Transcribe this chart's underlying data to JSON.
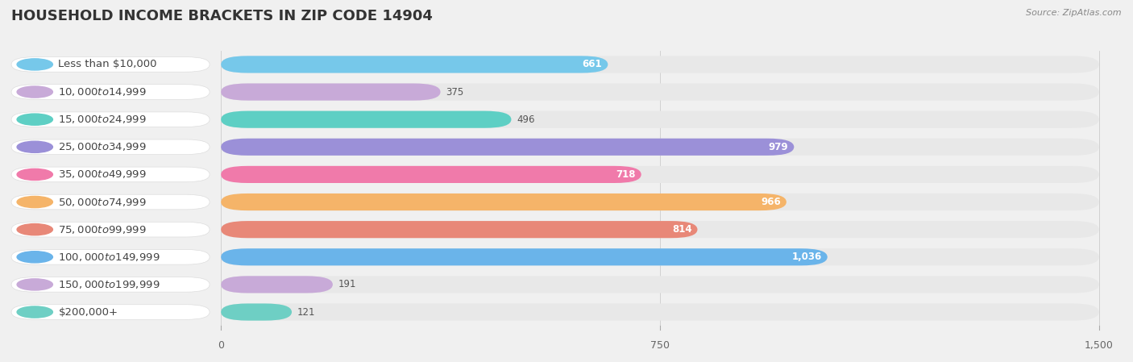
{
  "title": "HOUSEHOLD INCOME BRACKETS IN ZIP CODE 14904",
  "source": "Source: ZipAtlas.com",
  "categories": [
    "Less than $10,000",
    "$10,000 to $14,999",
    "$15,000 to $24,999",
    "$25,000 to $34,999",
    "$35,000 to $49,999",
    "$50,000 to $74,999",
    "$75,000 to $99,999",
    "$100,000 to $149,999",
    "$150,000 to $199,999",
    "$200,000+"
  ],
  "values": [
    661,
    375,
    496,
    979,
    718,
    966,
    814,
    1036,
    191,
    121
  ],
  "colors": [
    "#76c8ea",
    "#c8aad8",
    "#5ecfc4",
    "#9b90d8",
    "#f07aaa",
    "#f5b469",
    "#e88878",
    "#6ab4ea",
    "#c8aad8",
    "#6ecfc4"
  ],
  "xlim": [
    0,
    1500
  ],
  "xticks": [
    0,
    750,
    1500
  ],
  "background_color": "#f0f0f0",
  "bar_bg_color": "#e8e8e8",
  "row_bg_color": "#f7f7f7",
  "white_color": "#ffffff",
  "title_fontsize": 13,
  "label_fontsize": 9.5,
  "value_fontsize": 8.5,
  "tick_fontsize": 9
}
